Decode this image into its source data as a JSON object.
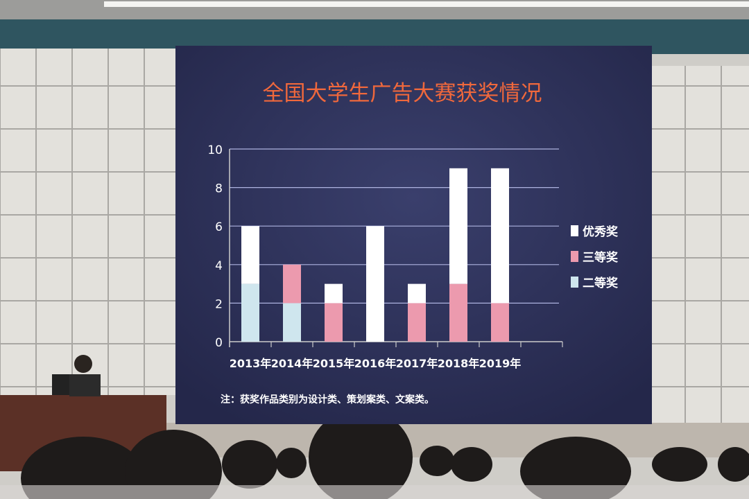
{
  "chart_data": {
    "type": "bar",
    "stacked": true,
    "title": "全国大学生广告大赛获奖情况",
    "categories": [
      "2013年",
      "2014年",
      "2015年",
      "2016年",
      "2017年",
      "2018年",
      "2019年"
    ],
    "series": [
      {
        "name": "二等奖",
        "color": "#cfe6ee",
        "values": [
          3,
          2,
          0,
          0,
          0,
          0,
          0
        ]
      },
      {
        "name": "三等奖",
        "color": "#ec9aae",
        "values": [
          0,
          2,
          2,
          0,
          2,
          3,
          2
        ]
      },
      {
        "name": "优秀奖",
        "color": "#ffffff",
        "values": [
          3,
          0,
          1,
          6,
          1,
          6,
          7
        ]
      }
    ],
    "legend_order": [
      "优秀奖",
      "三等奖",
      "二等奖"
    ],
    "yticks": [
      0,
      2,
      4,
      6,
      8,
      10
    ],
    "ylim": [
      0,
      10
    ],
    "grid": true,
    "legend_position": "right",
    "note": "注：获奖作品类别为设计类、策划案类、文案类。",
    "colors": {
      "screen_bg": "#2c2f55",
      "title": "#f0683c",
      "text": "#ffffff"
    }
  }
}
